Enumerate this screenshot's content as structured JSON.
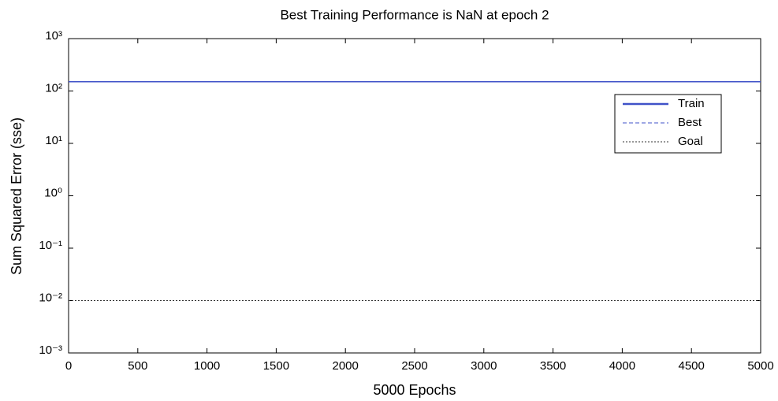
{
  "chart_data": {
    "type": "line",
    "title": "Best Training Performance is NaN at epoch 2",
    "xlabel": "5000 Epochs",
    "ylabel": "Sum Squared Error  (sse)",
    "x": [
      0,
      5000
    ],
    "series": [
      {
        "name": "Train",
        "color": "#3f51c8",
        "style": "solid",
        "values": [
          150,
          150
        ]
      },
      {
        "name": "Best",
        "color": "#3f51c8",
        "style": "dashed",
        "values": [
          null,
          null
        ]
      },
      {
        "name": "Goal",
        "color": "#333333",
        "style": "dotted",
        "values": [
          0.01,
          0.01
        ]
      }
    ],
    "xlim": [
      0,
      5000
    ],
    "xticks": [
      0,
      500,
      1000,
      1500,
      2000,
      2500,
      3000,
      3500,
      4000,
      4500,
      5000
    ],
    "ylim": [
      0.001,
      1000
    ],
    "yticks": [
      {
        "value": 0.001,
        "label": "10⁻³"
      },
      {
        "value": 0.01,
        "label": "10⁻²"
      },
      {
        "value": 0.1,
        "label": "10⁻¹"
      },
      {
        "value": 1,
        "label": "10⁰"
      },
      {
        "value": 10,
        "label": "10¹"
      },
      {
        "value": 100,
        "label": "10²"
      },
      {
        "value": 1000,
        "label": "10³"
      }
    ],
    "ylog": true,
    "legend": "upper right"
  }
}
